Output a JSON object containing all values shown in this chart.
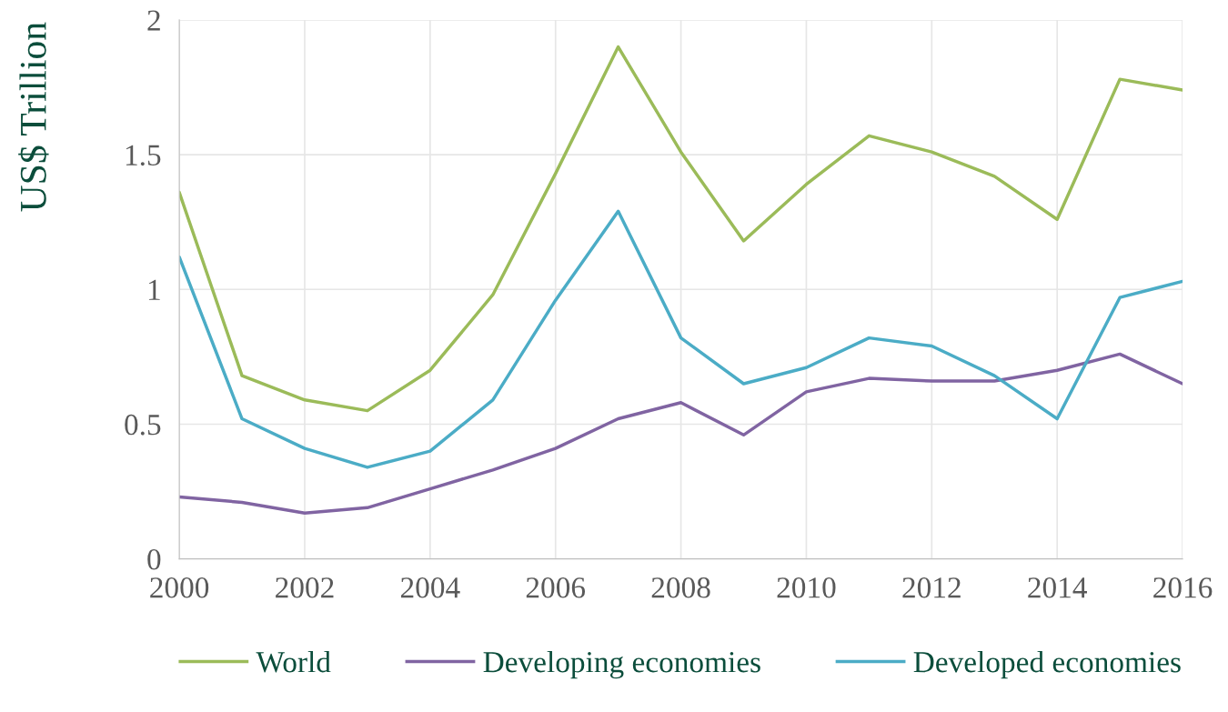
{
  "chart_data": {
    "type": "line",
    "ylabel": "US$ Trillion",
    "x": [
      2000,
      2001,
      2002,
      2003,
      2004,
      2005,
      2006,
      2007,
      2008,
      2009,
      2010,
      2011,
      2012,
      2013,
      2014,
      2015,
      2016
    ],
    "series": [
      {
        "name": "World",
        "color": "#9bbb59",
        "values": [
          1.36,
          0.68,
          0.59,
          0.55,
          0.7,
          0.98,
          1.43,
          1.9,
          1.51,
          1.18,
          1.39,
          1.57,
          1.51,
          1.42,
          1.26,
          1.78,
          1.74
        ]
      },
      {
        "name": "Developing economies",
        "color": "#8064a2",
        "values": [
          0.23,
          0.21,
          0.17,
          0.19,
          0.26,
          0.33,
          0.41,
          0.52,
          0.58,
          0.46,
          0.62,
          0.67,
          0.66,
          0.66,
          0.7,
          0.76,
          0.65
        ]
      },
      {
        "name": "Developed economies",
        "color": "#4bacc6",
        "values": [
          1.12,
          0.52,
          0.41,
          0.34,
          0.4,
          0.59,
          0.96,
          1.29,
          0.82,
          0.65,
          0.71,
          0.82,
          0.79,
          0.68,
          0.52,
          0.97,
          1.03
        ]
      }
    ],
    "xlim": [
      2000,
      2016
    ],
    "xticks": [
      2000,
      2002,
      2004,
      2006,
      2008,
      2010,
      2012,
      2014,
      2016
    ],
    "ylim": [
      0,
      2
    ],
    "yticks": [
      0,
      {
        "value": 0.5,
        "label": "0.5"
      },
      1,
      {
        "value": 1.5,
        "label": "1.5"
      },
      2
    ],
    "grid": true,
    "legend": "bottom",
    "marker": "none",
    "line_style": "solid"
  }
}
